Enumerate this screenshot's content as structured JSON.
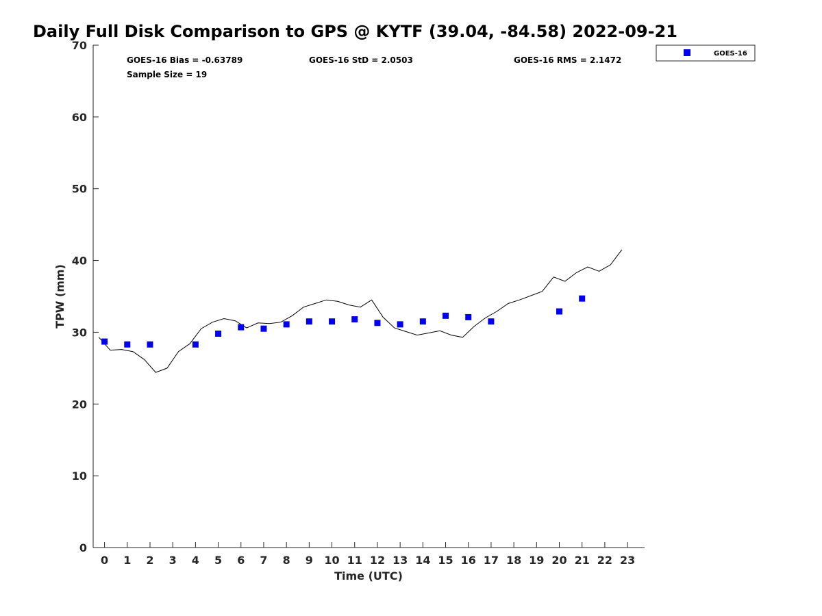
{
  "chart_data": {
    "type": "scatter",
    "title": "Daily Full Disk Comparison to GPS @ KYTF (39.04, -84.58) 2022-09-21",
    "xlabel": "Time (UTC)",
    "ylabel": "TPW (mm)",
    "xlim": [
      -0.5,
      23.75
    ],
    "ylim": [
      0,
      70
    ],
    "xticks": [
      "0",
      "1",
      "2",
      "3",
      "4",
      "5",
      "6",
      "7",
      "8",
      "9",
      "10",
      "11",
      "12",
      "13",
      "14",
      "15",
      "16",
      "17",
      "18",
      "19",
      "20",
      "21",
      "22",
      "23"
    ],
    "yticks": [
      "0",
      "10",
      "20",
      "30",
      "40",
      "50",
      "60",
      "70"
    ],
    "grid": false,
    "legend_position": "top-right",
    "stats": {
      "bias": "GOES-16 Bias = -0.63789",
      "std": "GOES-16 StD = 2.0503",
      "rms": "GOES-16 RMS = 2.1472",
      "sample": "Sample Size = 19"
    },
    "series": [
      {
        "name": "GOES-16",
        "type": "scatter",
        "color": "#0000ee",
        "marker": "square",
        "x": [
          0,
          1,
          2,
          4,
          5,
          6,
          7,
          8,
          9,
          10,
          11,
          12,
          13,
          14,
          15,
          16,
          17,
          20,
          21
        ],
        "y": [
          28.7,
          28.3,
          28.3,
          28.3,
          29.8,
          30.7,
          30.5,
          31.1,
          31.5,
          31.5,
          31.8,
          31.3,
          31.1,
          31.5,
          32.3,
          32.1,
          31.5,
          32.9,
          34.7
        ]
      },
      {
        "type": "line",
        "color": "#000000",
        "x": [
          -0.25,
          0.25,
          0.75,
          1.25,
          1.75,
          2.25,
          2.75,
          3.25,
          3.75,
          4.25,
          4.75,
          5.25,
          5.75,
          6.25,
          6.75,
          7.25,
          7.75,
          8.25,
          8.75,
          9.25,
          9.75,
          10.25,
          10.75,
          11.25,
          11.75,
          12.25,
          12.75,
          13.25,
          13.75,
          14.25,
          14.75,
          15.25,
          15.75,
          16.25,
          16.75,
          17.25,
          17.75,
          18.25,
          18.75,
          19.25,
          19.75,
          20.25,
          20.75,
          21.25,
          21.75,
          22.25,
          22.75
        ],
        "y": [
          29.3,
          27.5,
          27.6,
          27.3,
          26.2,
          24.4,
          25.0,
          27.3,
          28.4,
          30.5,
          31.4,
          31.9,
          31.6,
          30.6,
          31.3,
          31.2,
          31.4,
          32.3,
          33.5,
          34.0,
          34.5,
          34.3,
          33.8,
          33.5,
          34.5,
          32.1,
          30.6,
          30.1,
          29.6,
          29.9,
          30.2,
          29.6,
          29.3,
          30.8,
          32.0,
          32.9,
          34.0,
          34.5,
          35.1,
          35.7,
          37.7,
          37.1,
          38.3,
          39.1,
          38.5,
          39.4,
          41.5
        ]
      }
    ]
  }
}
